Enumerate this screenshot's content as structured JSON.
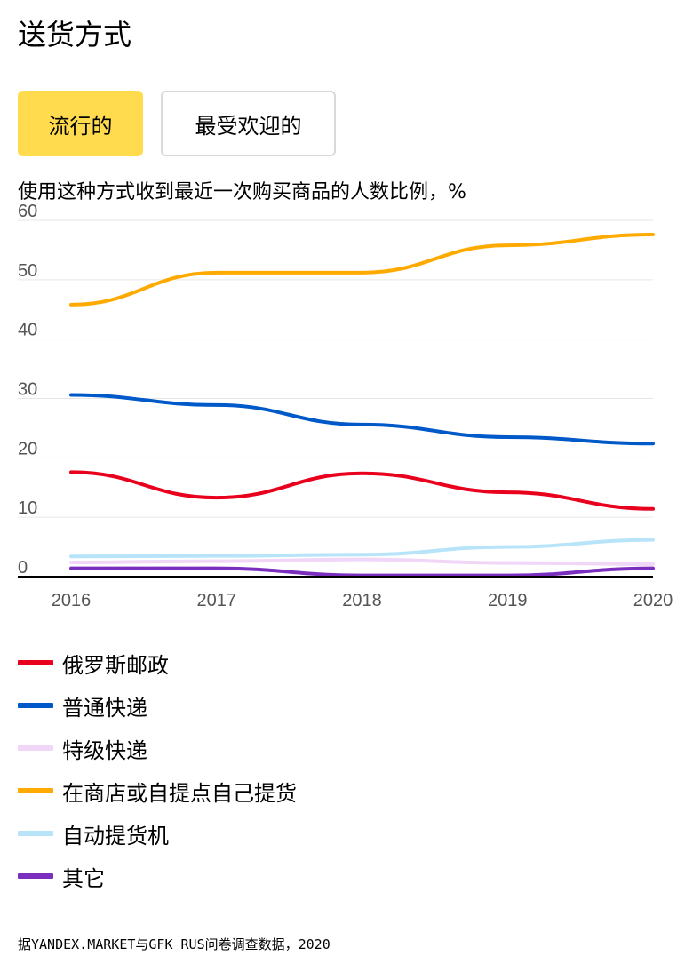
{
  "title": "送货方式",
  "tabs": [
    {
      "label": "流行的",
      "active": true
    },
    {
      "label": "最受欢迎的",
      "active": false
    }
  ],
  "subtitle": "使用这种方式收到最近一次购买商品的人数比例，%",
  "footer": "据YANDEX.MARKET与GFK RUS问卷调查数据，2020",
  "colors": {
    "accent": "#ffdb4d",
    "tab_border": "#d9d9d9"
  },
  "chart_data": {
    "type": "line",
    "title": "",
    "xlabel": "",
    "ylabel": "%",
    "x": [
      "2016",
      "2017",
      "2018",
      "2019",
      "2020"
    ],
    "ylim": [
      0,
      60
    ],
    "yticks": [
      0,
      10,
      20,
      30,
      40,
      50,
      60
    ],
    "grid": true,
    "legend_position": "bottom",
    "series": [
      {
        "name": "俄罗斯邮政",
        "color": "#e8001c",
        "values": [
          17.6,
          13.3,
          17.4,
          14.2,
          11.4
        ]
      },
      {
        "name": "普通快递",
        "color": "#0059c9",
        "values": [
          30.6,
          28.9,
          25.6,
          23.5,
          22.4
        ]
      },
      {
        "name": "特级快递",
        "color": "#f0d6f7",
        "values": [
          2.4,
          2.6,
          2.9,
          2.3,
          2.1
        ]
      },
      {
        "name": "在商店或自提点自己提货",
        "color": "#ffaa00",
        "values": [
          45.8,
          51.2,
          51.2,
          55.8,
          57.6
        ]
      },
      {
        "name": "自动提货机",
        "color": "#b8e4fa",
        "values": [
          3.4,
          3.5,
          3.7,
          5.0,
          6.2
        ]
      },
      {
        "name": "其它",
        "color": "#7b2fbe",
        "values": [
          1.4,
          1.4,
          0.2,
          0.2,
          1.4
        ]
      }
    ]
  }
}
